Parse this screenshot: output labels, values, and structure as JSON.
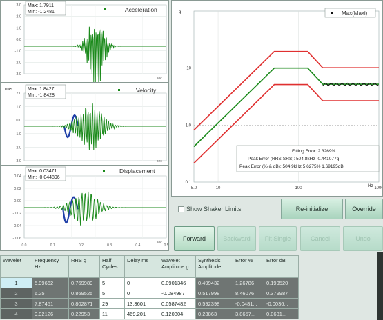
{
  "plots": {
    "accel": {
      "legend": "Acceleration",
      "max_text": "Max: 1.7911",
      "min_text": "Min: -1.2481",
      "y_ticks": [
        "3.0",
        "2.0",
        "1.0",
        "0.0",
        "-1.0",
        "-2.0",
        "-3.0"
      ],
      "x_unit": "sec"
    },
    "vel": {
      "unit": "m/s",
      "legend": "Velocity",
      "max_text": "Max: 1.8427",
      "min_text": "Min: -1.8428",
      "y_ticks": [
        "2.0",
        "1.0",
        "0.0",
        "-1.0",
        "-2.0",
        "-3.0"
      ],
      "x_unit": "sec"
    },
    "disp": {
      "legend": "Displacement",
      "max_text": "Max: 0.03471",
      "min_text": "Min: -0.044896",
      "y_ticks": [
        "0.04",
        "0.02",
        "0.00",
        "-0.02",
        "-0.04",
        "-0.06"
      ],
      "x_ticks": [
        "0.0",
        "0.1",
        "0.2",
        "0.3",
        "0.4",
        "0.5"
      ],
      "x_unit": "sec"
    },
    "srs": {
      "legend": "Max(Maxi)",
      "y_unit": "g",
      "x_unit": "Hz",
      "y_ticks": [
        "10",
        "1.0",
        "0.1"
      ],
      "x_ticks": [
        "5.0",
        "10",
        "100",
        "1000"
      ],
      "fit_lines": [
        "Fitting Error: 2.3269%",
        "Peak Error (RRS-SRS): 504.8kHz -0.441077g",
        "Peak Error (% & dB): 504.9kHz 5.6275% 1.69195dB"
      ]
    }
  },
  "controls": {
    "show_shaker_limits": "Show Shaker Limits",
    "reinitialize": "Re-initialize",
    "override": "Override",
    "forward": "Forward",
    "disabled_buttons": [
      "Backward",
      "Fit Single",
      "Cancel",
      "Undo"
    ]
  },
  "table": {
    "headers": [
      "Wavelet",
      "Frequency Hz",
      "RRS g",
      "Half Cycles",
      "Delay ms",
      "Wavelet Amplitude g",
      "Synthesis Amplitude",
      "Error %",
      "Error dB"
    ],
    "rows": [
      [
        "1",
        "5.99662",
        "0.769989",
        "5",
        "0",
        "0.0901346",
        "0.499432",
        "1.26786",
        "0.199520"
      ],
      [
        "2",
        "6.25",
        "0.869525",
        "5",
        "0",
        "-0.084987",
        "0.517998",
        "8.46076",
        "0.379987"
      ],
      [
        "3",
        "7.87451",
        "0.802871",
        "29",
        "13.3601",
        "0.0587482",
        "0.592398",
        "-0.0481...",
        "-0.0036..."
      ],
      [
        "4",
        "9.92126",
        "0.22953",
        "11",
        "469.201",
        "0.120304",
        "0.23863",
        "3.8657...",
        "0.0631..."
      ]
    ]
  },
  "colors": {
    "trace_green": "#1b8a1b",
    "trace_blue": "#1f3fa8",
    "limit_red": "#e03030",
    "accent_green": "#a9d4bd"
  }
}
